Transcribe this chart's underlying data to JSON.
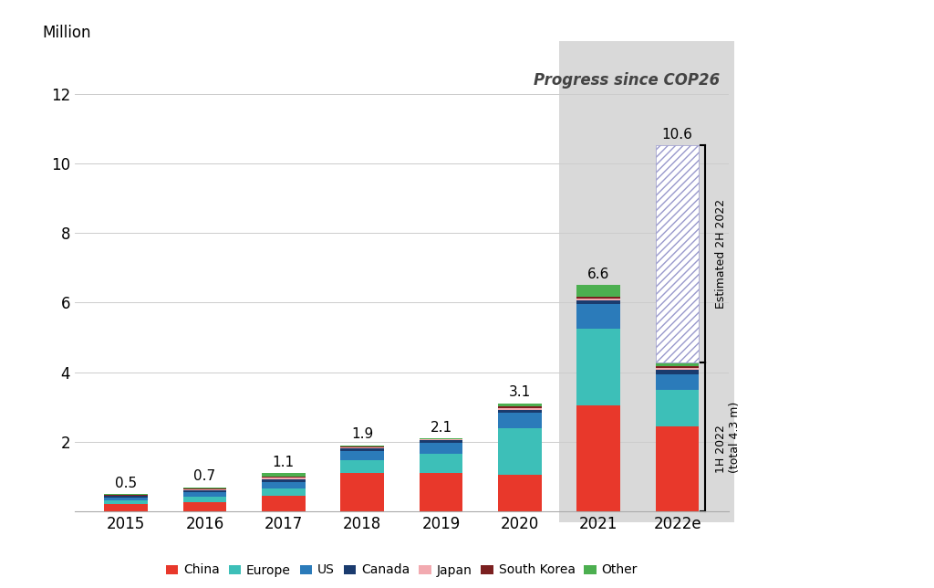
{
  "categories": [
    "2015",
    "2016",
    "2017",
    "2018",
    "2019",
    "2020",
    "2021",
    "2022e"
  ],
  "totals": [
    0.5,
    0.7,
    1.1,
    1.9,
    2.1,
    3.1,
    6.6,
    10.6
  ],
  "series": {
    "China": [
      0.21,
      0.28,
      0.45,
      1.1,
      1.1,
      1.05,
      3.05,
      2.45
    ],
    "Europe": [
      0.1,
      0.15,
      0.2,
      0.38,
      0.55,
      1.35,
      2.2,
      1.05
    ],
    "US": [
      0.1,
      0.12,
      0.2,
      0.27,
      0.33,
      0.45,
      0.7,
      0.45
    ],
    "Canada": [
      0.03,
      0.05,
      0.08,
      0.06,
      0.06,
      0.08,
      0.12,
      0.12
    ],
    "Japan": [
      0.02,
      0.04,
      0.05,
      0.04,
      0.03,
      0.05,
      0.05,
      0.05
    ],
    "South Korea": [
      0.01,
      0.02,
      0.02,
      0.02,
      0.02,
      0.05,
      0.06,
      0.06
    ],
    "Other": [
      0.03,
      0.04,
      0.1,
      0.03,
      0.01,
      0.07,
      0.32,
      0.1
    ]
  },
  "estimated_2H": 6.23,
  "colors": {
    "China": "#e8382b",
    "Europe": "#3dbfb8",
    "US": "#2b7bba",
    "Canada": "#1a3b6e",
    "Japan": "#f2aab0",
    "South Korea": "#7b2020",
    "Other": "#4caf50"
  },
  "hatch_color": "#9999cc",
  "bg_rect_color": "#d9d9d9",
  "ylim": [
    0,
    13
  ],
  "yticks": [
    0,
    2,
    4,
    6,
    8,
    10,
    12
  ],
  "cop26_label": "Progress since COP26",
  "annotation_1h": "1H 2022\n(total 4.3 m)",
  "annotation_2h": "Estimated 2H 2022"
}
